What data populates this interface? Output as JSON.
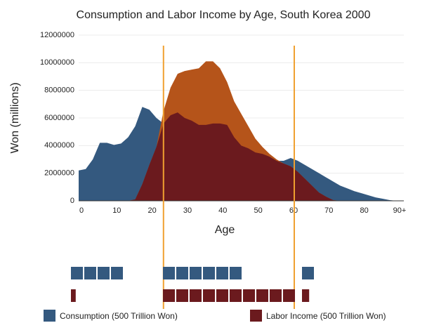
{
  "chart_data": {
    "type": "area",
    "title": "Consumption and Labor Income by Age, South Korea 2000",
    "xlabel": "Age",
    "ylabel": "Won (millions)",
    "x": [
      0,
      2,
      4,
      6,
      8,
      10,
      12,
      14,
      16,
      18,
      20,
      22,
      24,
      26,
      28,
      30,
      32,
      34,
      36,
      38,
      40,
      42,
      44,
      46,
      48,
      50,
      52,
      54,
      56,
      58,
      60,
      62,
      64,
      66,
      68,
      70,
      72,
      74,
      76,
      78,
      80,
      82,
      84,
      86,
      88,
      90
    ],
    "series": [
      {
        "name": "Consumption (500 Trillion Won)",
        "color": "#34597f",
        "values": [
          2200000,
          2300000,
          3000000,
          4200000,
          4200000,
          4050000,
          4150000,
          4600000,
          5400000,
          6800000,
          6600000,
          6000000,
          5600000,
          6200000,
          6400000,
          6000000,
          5800000,
          5500000,
          5500000,
          5600000,
          5600000,
          5500000,
          4600000,
          4000000,
          3800000,
          3500000,
          3400000,
          3200000,
          2900000,
          2900000,
          3100000,
          2900000,
          2600000,
          2300000,
          2000000,
          1700000,
          1400000,
          1100000,
          900000,
          700000,
          550000,
          400000,
          250000,
          150000,
          50000,
          0
        ],
        "blocks": [
          4,
          6,
          1
        ]
      },
      {
        "name": "Labor Income (500 Trillion Won)",
        "color": "#6b1a1e",
        "surplus_color": "#b5541a",
        "values": [
          0,
          0,
          0,
          0,
          0,
          0,
          0,
          0,
          100000,
          1200000,
          2600000,
          3900000,
          6500000,
          8200000,
          9200000,
          9400000,
          9500000,
          9600000,
          10100000,
          10100000,
          9600000,
          8600000,
          7200000,
          6300000,
          5400000,
          4500000,
          3900000,
          3400000,
          3000000,
          2700000,
          2500000,
          2100000,
          1600000,
          1100000,
          600000,
          300000,
          50000,
          0,
          0,
          0,
          0,
          0,
          0,
          0,
          0,
          0
        ],
        "blocks": [
          0.4,
          10,
          0.6
        ]
      }
    ],
    "vlines": [
      24,
      61
    ],
    "vline_color": "#f0a030",
    "xlim": [
      0,
      92
    ],
    "xticks": [
      0,
      10,
      20,
      30,
      40,
      50,
      60,
      70,
      80,
      {
        "value": 90,
        "label": "90+"
      }
    ],
    "ylim": [
      0,
      12000000
    ],
    "yticks": [
      0,
      2000000,
      4000000,
      6000000,
      8000000,
      10000000,
      12000000
    ],
    "grid": true
  }
}
